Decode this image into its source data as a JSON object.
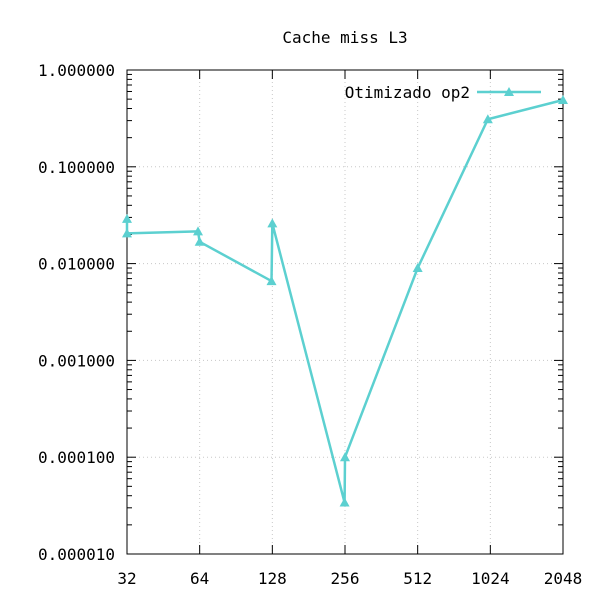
{
  "chart_data": {
    "type": "line",
    "title": "Cache miss L3",
    "xlabel": "",
    "ylabel": "",
    "x_scale": "log2",
    "y_scale": "log10",
    "xlim": [
      32,
      2048
    ],
    "ylim": [
      1e-05,
      1
    ],
    "grid": true,
    "legend_position": "top-right",
    "x_ticks": [
      "32",
      "64",
      "128",
      "256",
      "512",
      "1024",
      "2048"
    ],
    "x_tick_values": [
      32,
      64,
      128,
      256,
      512,
      1024,
      2048
    ],
    "y_ticks": [
      "1.000000",
      "0.100000",
      "0.010000",
      "0.001000",
      "0.000100",
      "0.000010"
    ],
    "y_tick_values": [
      1,
      0.1,
      0.01,
      0.001,
      0.0001,
      1e-05
    ],
    "series": [
      {
        "name": "Otimizado op2",
        "color": "#5cd0d0",
        "marker": "triangle",
        "points": [
          [
            32,
            0.029
          ],
          [
            32,
            0.0205
          ],
          [
            63,
            0.0215
          ],
          [
            64,
            0.0168
          ],
          [
            127,
            0.0066
          ],
          [
            128,
            0.026
          ],
          [
            255,
            3.4e-05
          ],
          [
            256,
            0.0001
          ],
          [
            512,
            0.009
          ],
          [
            1000,
            0.31
          ],
          [
            2048,
            0.49
          ]
        ]
      }
    ]
  }
}
